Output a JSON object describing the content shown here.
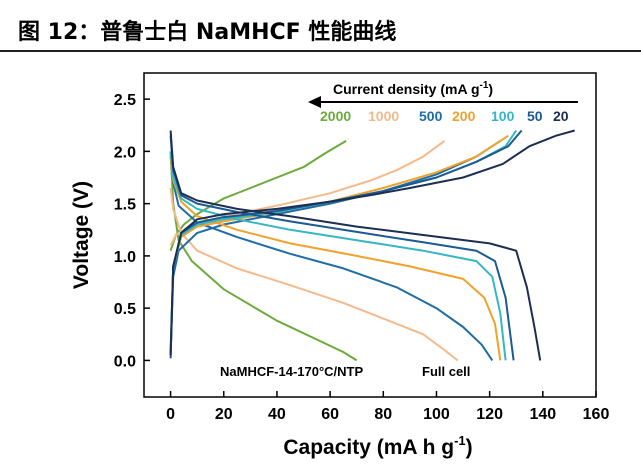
{
  "page": {
    "title": "图 12：普鲁士白 NaMHCF 性能曲线"
  },
  "chart_data": {
    "type": "line",
    "xlabel": "Capacity (mA h g",
    "xlabel_sup": "-1",
    "xlabel_end": ")",
    "ylabel": "Voltage (V)",
    "xlim": [
      -10,
      160
    ],
    "ylim": [
      -0.35,
      2.75
    ],
    "xticks": [
      0,
      20,
      40,
      60,
      80,
      100,
      120,
      140,
      160
    ],
    "yticks": [
      0.0,
      0.5,
      1.0,
      1.5,
      2.0,
      2.5
    ],
    "legend_title": "Current density (mA g",
    "legend_title_sup": "-1",
    "legend_title_end": ")",
    "annotation": "NaMHCF-14-170°C/NTP",
    "annotation2": "Full cell",
    "series": [
      {
        "name": "2000",
        "color": "#6aab3c",
        "charge": [
          [
            0,
            1.05
          ],
          [
            2,
            1.2
          ],
          [
            5,
            1.3
          ],
          [
            10,
            1.4
          ],
          [
            20,
            1.55
          ],
          [
            30,
            1.65
          ],
          [
            40,
            1.75
          ],
          [
            50,
            1.85
          ],
          [
            58,
            1.98
          ],
          [
            66,
            2.1
          ]
        ],
        "discharge": [
          [
            0,
            2.0
          ],
          [
            1,
            1.5
          ],
          [
            3,
            1.15
          ],
          [
            8,
            0.95
          ],
          [
            20,
            0.68
          ],
          [
            40,
            0.38
          ],
          [
            55,
            0.2
          ],
          [
            65,
            0.08
          ],
          [
            70,
            0.0
          ]
        ]
      },
      {
        "name": "1000",
        "color": "#f5b98c",
        "charge": [
          [
            0,
            1.1
          ],
          [
            2,
            1.2
          ],
          [
            8,
            1.3
          ],
          [
            20,
            1.38
          ],
          [
            40,
            1.48
          ],
          [
            60,
            1.6
          ],
          [
            75,
            1.72
          ],
          [
            85,
            1.82
          ],
          [
            95,
            1.95
          ],
          [
            103,
            2.1
          ]
        ],
        "discharge": [
          [
            0,
            1.65
          ],
          [
            1,
            1.45
          ],
          [
            4,
            1.22
          ],
          [
            10,
            1.05
          ],
          [
            25,
            0.88
          ],
          [
            45,
            0.72
          ],
          [
            65,
            0.55
          ],
          [
            80,
            0.4
          ],
          [
            95,
            0.25
          ],
          [
            103,
            0.1
          ],
          [
            108,
            0.0
          ]
        ]
      },
      {
        "name": "500",
        "color": "#1f6ca6",
        "charge": [
          [
            0,
            0.05
          ],
          [
            1,
            0.8
          ],
          [
            3,
            1.05
          ],
          [
            10,
            1.22
          ],
          [
            20,
            1.3
          ],
          [
            40,
            1.4
          ],
          [
            60,
            1.5
          ],
          [
            80,
            1.62
          ],
          [
            100,
            1.78
          ],
          [
            115,
            1.95
          ],
          [
            124,
            2.1
          ]
        ],
        "discharge": [
          [
            0,
            1.95
          ],
          [
            1,
            1.7
          ],
          [
            3,
            1.48
          ],
          [
            10,
            1.32
          ],
          [
            25,
            1.18
          ],
          [
            45,
            1.02
          ],
          [
            65,
            0.88
          ],
          [
            85,
            0.7
          ],
          [
            100,
            0.5
          ],
          [
            110,
            0.32
          ],
          [
            117,
            0.15
          ],
          [
            121,
            0.0
          ]
        ]
      },
      {
        "name": "200",
        "color": "#f0a22a",
        "charge": [
          [
            0,
            0.1
          ],
          [
            1,
            0.9
          ],
          [
            4,
            1.18
          ],
          [
            10,
            1.28
          ],
          [
            20,
            1.33
          ],
          [
            40,
            1.42
          ],
          [
            60,
            1.52
          ],
          [
            80,
            1.65
          ],
          [
            100,
            1.8
          ],
          [
            115,
            1.95
          ],
          [
            127,
            2.15
          ]
        ],
        "discharge": [
          [
            0,
            1.95
          ],
          [
            1,
            1.72
          ],
          [
            4,
            1.52
          ],
          [
            10,
            1.38
          ],
          [
            25,
            1.25
          ],
          [
            45,
            1.12
          ],
          [
            70,
            1.0
          ],
          [
            90,
            0.9
          ],
          [
            110,
            0.78
          ],
          [
            118,
            0.6
          ],
          [
            122,
            0.35
          ],
          [
            124,
            0.0
          ]
        ]
      },
      {
        "name": "100",
        "color": "#35b7c2",
        "charge": [
          [
            0,
            0.08
          ],
          [
            1,
            0.9
          ],
          [
            4,
            1.2
          ],
          [
            10,
            1.3
          ],
          [
            20,
            1.35
          ],
          [
            40,
            1.42
          ],
          [
            60,
            1.52
          ],
          [
            80,
            1.62
          ],
          [
            100,
            1.75
          ],
          [
            115,
            1.9
          ],
          [
            126,
            2.05
          ],
          [
            130,
            2.2
          ]
        ],
        "discharge": [
          [
            0,
            2.0
          ],
          [
            1,
            1.75
          ],
          [
            4,
            1.55
          ],
          [
            10,
            1.45
          ],
          [
            25,
            1.35
          ],
          [
            45,
            1.25
          ],
          [
            70,
            1.15
          ],
          [
            95,
            1.05
          ],
          [
            115,
            0.95
          ],
          [
            121,
            0.8
          ],
          [
            124,
            0.45
          ],
          [
            126,
            0.0
          ]
        ]
      },
      {
        "name": "50",
        "color": "#1b5a92",
        "charge": [
          [
            0,
            0.02
          ],
          [
            1,
            0.9
          ],
          [
            4,
            1.22
          ],
          [
            10,
            1.32
          ],
          [
            20,
            1.37
          ],
          [
            40,
            1.43
          ],
          [
            60,
            1.52
          ],
          [
            80,
            1.62
          ],
          [
            100,
            1.75
          ],
          [
            115,
            1.9
          ],
          [
            127,
            2.05
          ],
          [
            132,
            2.2
          ]
        ],
        "discharge": [
          [
            0,
            2.15
          ],
          [
            1,
            1.82
          ],
          [
            4,
            1.58
          ],
          [
            10,
            1.5
          ],
          [
            25,
            1.42
          ],
          [
            45,
            1.33
          ],
          [
            70,
            1.23
          ],
          [
            95,
            1.13
          ],
          [
            115,
            1.05
          ],
          [
            122,
            0.95
          ],
          [
            126,
            0.6
          ],
          [
            129,
            0.0
          ]
        ]
      },
      {
        "name": "20",
        "color": "#1c2f52",
        "charge": [
          [
            0,
            0.05
          ],
          [
            1,
            0.9
          ],
          [
            4,
            1.22
          ],
          [
            10,
            1.35
          ],
          [
            20,
            1.4
          ],
          [
            40,
            1.45
          ],
          [
            60,
            1.52
          ],
          [
            75,
            1.58
          ],
          [
            90,
            1.65
          ],
          [
            110,
            1.75
          ],
          [
            125,
            1.88
          ],
          [
            135,
            2.05
          ],
          [
            145,
            2.15
          ],
          [
            152,
            2.2
          ]
        ],
        "discharge": [
          [
            0,
            2.2
          ],
          [
            1,
            1.85
          ],
          [
            4,
            1.6
          ],
          [
            10,
            1.53
          ],
          [
            25,
            1.45
          ],
          [
            45,
            1.38
          ],
          [
            70,
            1.28
          ],
          [
            95,
            1.2
          ],
          [
            120,
            1.12
          ],
          [
            130,
            1.05
          ],
          [
            134,
            0.7
          ],
          [
            137,
            0.3
          ],
          [
            139,
            0.0
          ]
        ]
      }
    ]
  }
}
